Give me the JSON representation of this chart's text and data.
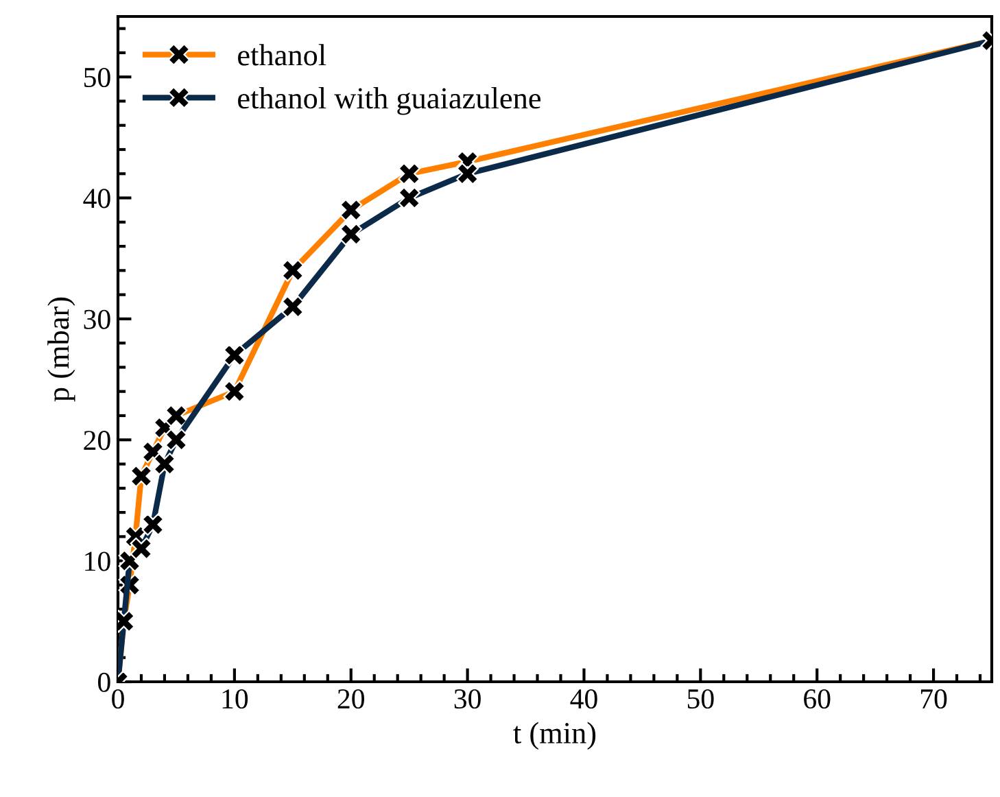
{
  "chart_data": {
    "type": "line",
    "xlabel": "t (min)",
    "ylabel": "p (mbar)",
    "xlim": [
      0,
      75
    ],
    "ylim": [
      0,
      55
    ],
    "xticks": [
      0,
      10,
      20,
      30,
      40,
      50,
      60,
      70
    ],
    "yticks": [
      0,
      10,
      20,
      30,
      40,
      50
    ],
    "grid": false,
    "legend": "top left",
    "marker": "cross",
    "line_style": "solid",
    "series": [
      {
        "name": "ethanol",
        "color": "#ff8000",
        "x": [
          0,
          0.5,
          1,
          1.5,
          2,
          3,
          4,
          5,
          10,
          15,
          20,
          25,
          30,
          75
        ],
        "values": [
          0,
          5,
          8,
          12,
          17,
          19,
          21,
          22,
          24,
          34,
          39,
          42,
          43,
          53
        ]
      },
      {
        "name": "ethanol with guaiazulene",
        "color": "#0b2a4a",
        "x": [
          0,
          0.5,
          1,
          2,
          3,
          4,
          5,
          10,
          15,
          20,
          25,
          30,
          75
        ],
        "values": [
          0,
          5,
          10,
          11,
          13,
          18,
          20,
          27,
          31,
          37,
          40,
          42,
          53
        ]
      }
    ]
  }
}
